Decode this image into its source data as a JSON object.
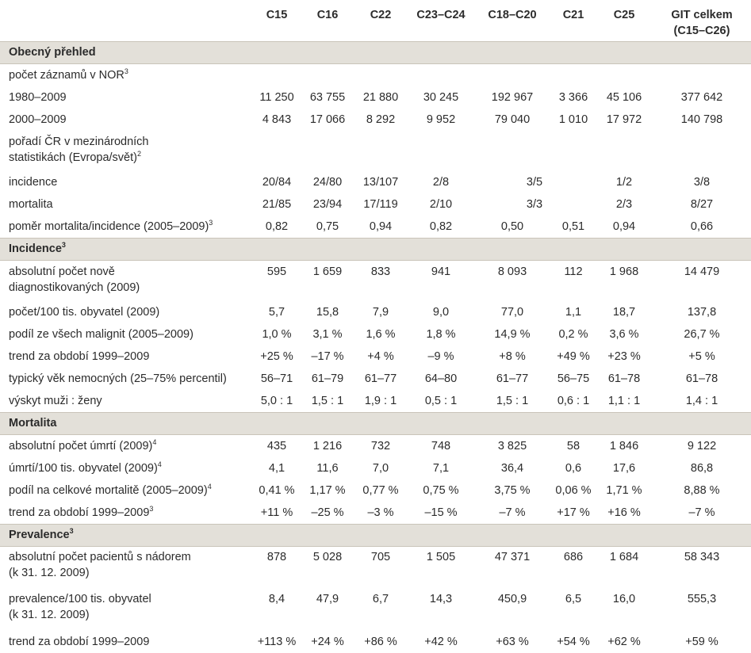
{
  "columns": [
    "C15",
    "C16",
    "C22",
    "C23–C24",
    "C18–C20",
    "C21",
    "C25",
    "GIT celkem (C15–C26)"
  ],
  "header": {
    "c1": "C15",
    "c2": "C16",
    "c3": "C22",
    "c4": "C23–C24",
    "c5": "C18–C20",
    "c6": "C21",
    "c7": "C25",
    "c8_line1": "GIT celkem",
    "c8_line2": "(C15–C26)"
  },
  "sections": {
    "obecny": "Obecný přehled",
    "incidence": "Incidence",
    "incidence_sup": "3",
    "mortalita": "Mortalita",
    "prevalence": "Prevalence",
    "prevalence_sup": "3"
  },
  "rows": {
    "pocet_zaznamu": {
      "label": "počet záznamů v NOR",
      "sup": "3"
    },
    "y1980": {
      "label": "1980–2009",
      "values": [
        "11 250",
        "63 755",
        "21 880",
        "30 245",
        "192 967",
        "3 366",
        "45 106",
        "377 642"
      ]
    },
    "y2000": {
      "label": "2000–2009",
      "values": [
        "4 843",
        "17 066",
        "8 292",
        "9 952",
        "79 040",
        "1 010",
        "17 972",
        "140 798"
      ]
    },
    "poradi": {
      "label_line1": "pořadí ČR v mezinárodních",
      "label_line2": "statistikách (Evropa/svět)",
      "sup": "2"
    },
    "incidence": {
      "label": "incidence",
      "values": [
        "20/84",
        "24/80",
        "13/107",
        "2/8",
        "3/5",
        "1/2",
        "3/8"
      ]
    },
    "mortalita": {
      "label": "mortalita",
      "values": [
        "21/85",
        "23/94",
        "17/119",
        "2/10",
        "3/3",
        "2/3",
        "8/27"
      ]
    },
    "pomer": {
      "label": "poměr mortalita/incidence (2005–2009)",
      "sup": "3",
      "values": [
        "0,82",
        "0,75",
        "0,94",
        "0,82",
        "0,50",
        "0,51",
        "0,94",
        "0,66"
      ]
    },
    "abs_nove": {
      "label_line1": "absolutní počet nově",
      "label_line2": "diagnostikovaných (2009)",
      "values": [
        "595",
        "1 659",
        "833",
        "941",
        "8 093",
        "112",
        "1 968",
        "14 479"
      ]
    },
    "pocet100": {
      "label": "počet/100 tis. obyvatel (2009)",
      "values": [
        "5,7",
        "15,8",
        "7,9",
        "9,0",
        "77,0",
        "1,1",
        "18,7",
        "137,8"
      ]
    },
    "podil_malignit": {
      "label": "podíl ze všech malignit (2005–2009)",
      "values": [
        "1,0 %",
        "3,1 %",
        "1,6 %",
        "1,8 %",
        "14,9 %",
        "0,2 %",
        "3,6 %",
        "26,7 %"
      ]
    },
    "trend_inc": {
      "label": "trend za období 1999–2009",
      "values": [
        "+25 %",
        "–17 %",
        "+4 %",
        "–9 %",
        "+8 %",
        "+49 %",
        "+23 %",
        "+5 %"
      ]
    },
    "vek": {
      "label": "typický věk nemocných (25–75% percentil)",
      "values": [
        "56–71",
        "61–79",
        "61–77",
        "64–80",
        "61–77",
        "56–75",
        "61–78",
        "61–78"
      ]
    },
    "muzi_zeny": {
      "label": "výskyt muži : ženy",
      "values": [
        "5,0 : 1",
        "1,5 : 1",
        "1,9 : 1",
        "0,5 : 1",
        "1,5 : 1",
        "0,6 : 1",
        "1,1 : 1",
        "1,4 : 1"
      ]
    },
    "abs_umrti": {
      "label": "absolutní počet úmrtí (2009)",
      "sup": "4",
      "values": [
        "435",
        "1 216",
        "732",
        "748",
        "3 825",
        "58",
        "1 846",
        "9 122"
      ]
    },
    "umrti100": {
      "label": "úmrtí/100 tis. obyvatel (2009)",
      "sup": "4",
      "values": [
        "4,1",
        "11,6",
        "7,0",
        "7,1",
        "36,4",
        "0,6",
        "17,6",
        "86,8"
      ]
    },
    "podil_mort": {
      "label": "podíl na celkové mortalitě (2005–2009)",
      "sup": "4",
      "values": [
        "0,41 %",
        "1,17 %",
        "0,77 %",
        "0,75 %",
        "3,75 %",
        "0,06 %",
        "1,71 %",
        "8,88 %"
      ]
    },
    "trend_mort": {
      "label": "trend za období 1999–2009",
      "sup": "3",
      "values": [
        "+11 %",
        "–25 %",
        "–3 %",
        "–15 %",
        "–7 %",
        "+17 %",
        "+16 %",
        "–7 %"
      ]
    },
    "abs_pacientu": {
      "label_line1": "absolutní počet pacientů s nádorem",
      "label_line2": "(k 31. 12. 2009)",
      "values": [
        "878",
        "5 028",
        "705",
        "1 505",
        "47 371",
        "686",
        "1 684",
        "58 343"
      ]
    },
    "prev100": {
      "label_line1": "prevalence/100 tis. obyvatel",
      "label_line2": "(k 31. 12. 2009)",
      "values": [
        "8,4",
        "47,9",
        "6,7",
        "14,3",
        "450,9",
        "6,5",
        "16,0",
        "555,3"
      ]
    },
    "trend_prev": {
      "label": "trend za období 1999–2009",
      "values": [
        "+113 %",
        "+24 %",
        "+86 %",
        "+42 %",
        "+63 %",
        "+54 %",
        "+62 %",
        "+59 %"
      ]
    }
  },
  "colors": {
    "section_bg": "#e3e0d9",
    "text": "#2b2b2b"
  }
}
